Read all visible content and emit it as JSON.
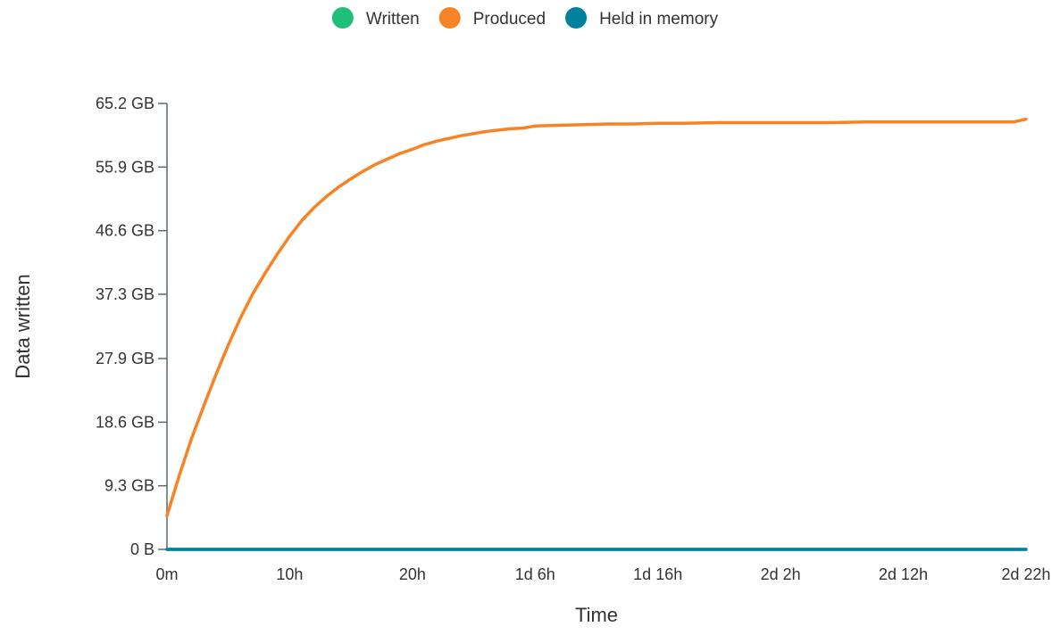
{
  "chart_data": {
    "type": "line",
    "title": "",
    "xlabel": "Time",
    "ylabel": "Data written",
    "x_unit": "hours",
    "x_ticks": [
      {
        "value": 0,
        "label": "0m"
      },
      {
        "value": 10,
        "label": "10h"
      },
      {
        "value": 20,
        "label": "20h"
      },
      {
        "value": 30,
        "label": "1d 6h"
      },
      {
        "value": 40,
        "label": "1d 16h"
      },
      {
        "value": 50,
        "label": "2d 2h"
      },
      {
        "value": 60,
        "label": "2d 12h"
      },
      {
        "value": 70,
        "label": "2d 22h"
      }
    ],
    "y_unit": "GB",
    "y_ticks": [
      {
        "value": 0,
        "label": "0 B"
      },
      {
        "value": 9.3,
        "label": "9.3 GB"
      },
      {
        "value": 18.6,
        "label": "18.6 GB"
      },
      {
        "value": 27.9,
        "label": "27.9 GB"
      },
      {
        "value": 37.3,
        "label": "37.3 GB"
      },
      {
        "value": 46.6,
        "label": "46.6 GB"
      },
      {
        "value": 55.9,
        "label": "55.9 GB"
      },
      {
        "value": 65.2,
        "label": "65.2 GB"
      }
    ],
    "xlim": [
      0,
      70
    ],
    "ylim": [
      0,
      65.2
    ],
    "grid": false,
    "legend_position": "top-center",
    "legend": [
      {
        "name": "Written",
        "color": "#1fbf78"
      },
      {
        "name": "Produced",
        "color": "#f68426"
      },
      {
        "name": "Held in memory",
        "color": "#00819e"
      }
    ],
    "series": [
      {
        "name": "Written",
        "color": "#1fbf78",
        "x": [
          0,
          70
        ],
        "values": [
          0,
          0
        ]
      },
      {
        "name": "Produced",
        "color": "#f68426",
        "x": [
          0,
          1,
          2,
          3,
          4,
          5,
          6,
          7,
          8,
          9,
          10,
          11,
          12,
          13,
          14,
          15,
          16,
          17,
          18,
          19,
          20,
          21,
          22,
          23,
          24,
          25,
          26,
          27,
          28,
          29,
          30,
          32,
          34,
          36,
          38,
          40,
          42,
          45,
          48,
          51,
          54,
          57,
          60,
          63,
          66,
          69,
          70
        ],
        "values": [
          4.9,
          10.8,
          16.2,
          21.0,
          25.6,
          29.9,
          33.9,
          37.4,
          40.4,
          43.2,
          45.8,
          48.1,
          50.0,
          51.6,
          53.0,
          54.2,
          55.3,
          56.3,
          57.1,
          57.9,
          58.5,
          59.2,
          59.7,
          60.1,
          60.5,
          60.8,
          61.1,
          61.3,
          61.5,
          61.6,
          61.9,
          62.0,
          62.1,
          62.2,
          62.2,
          62.3,
          62.3,
          62.4,
          62.4,
          62.4,
          62.4,
          62.5,
          62.5,
          62.5,
          62.5,
          62.5,
          62.9
        ]
      },
      {
        "name": "Held in memory",
        "color": "#00819e",
        "x": [
          0,
          70
        ],
        "values": [
          0,
          0
        ]
      }
    ]
  }
}
